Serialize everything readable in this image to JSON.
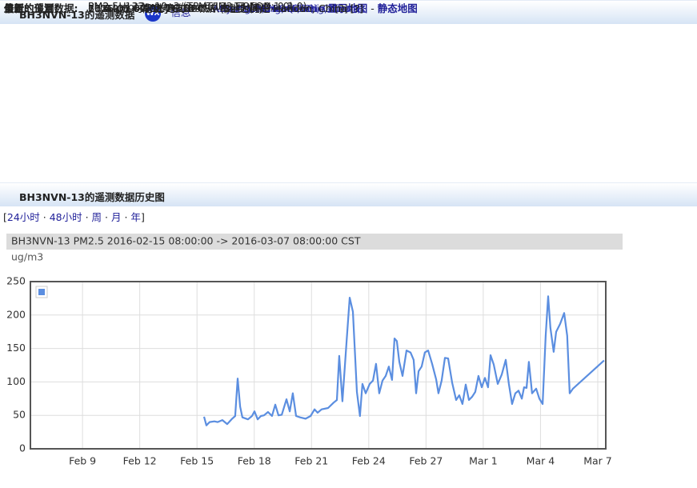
{
  "header": {
    "title": "BH3NVN-13的遥测数据",
    "badge": "WX",
    "sep": " - ",
    "info_link": "信息"
  },
  "info": [
    {
      "label": "位置:",
      "lines": [
        [
          {
            "text": "36°40.09' N 114°33.84' E - 定位 "
          },
          {
            "text": "OM76GQ70QI",
            "link": true
          },
          {
            "text": " - "
          },
          {
            "text": "显示地图",
            "link": true,
            "bold": true
          },
          {
            "text": " - "
          },
          {
            "text": "静态地图",
            "link": true,
            "bold": true
          }
        ],
        [
          {
            "text": "11.4 km 向东北 方向 49° 从 "
          },
          {
            "text": "Handan, Hebei, China",
            "link": true
          },
          {
            "text": " [?]"
          }
        ],
        [
          {
            "text": "30.5 km 向南 方向 170° 从 "
          },
          {
            "text": "Shahecheng, Hebei, China",
            "link": true
          }
        ],
        [
          {
            "text": "66.6 km 向北 方向 18° 从 "
          },
          {
            "text": "Anyang, Henan Sheng, China",
            "link": true
          }
        ]
      ]
    },
    {
      "label": "最新的位置:",
      "lines": [
        [
          {
            "text": "2016-03-07 08:26:18 CST (2s 之前)"
          }
        ],
        [
          {
            "text": "2016-03-07 08:26:18 CST 本地时间是 Handan, China [?]"
          }
        ]
      ]
    },
    {
      "label": "最新的遥测数据:",
      "lines": [
        [
          {
            "text": "2016-03-07 08:26:18 CST (8s 之前)"
          }
        ],
        [
          {
            "text": "2016-03-07 08:26:18 CST 本地时间是 Handan, China [?]"
          }
        ]
      ]
    },
    {
      "label": "值:",
      "lines": [
        [
          {
            "text": "PM2.5: 132 ug/m3 (TLM: 132 EQN: 0,1,0)"
          }
        ],
        [
          {
            "text": "PM2.5H: 13 x10ug/m3 (TLM: 13 EQN: 0,1,0)"
          }
        ]
      ]
    }
  ],
  "history": {
    "title": "BH3NVN-13的遥测数据历史图"
  },
  "nav": {
    "open": "[",
    "sep": " · ",
    "close": "]",
    "links": [
      "24小时",
      "48小时",
      "周",
      "月",
      "年"
    ]
  },
  "chart_data": {
    "type": "line",
    "title": "BH3NVN-13 PM2.5 2016-02-15 08:00:00 -> 2016-03-07 08:00:00 CST",
    "y_label": "ug/m3",
    "x": [
      15.37,
      15.49,
      15.66,
      15.91,
      16.08,
      16.33,
      16.58,
      16.84,
      17.0,
      17.13,
      17.26,
      17.38,
      17.67,
      17.88,
      18.01,
      18.18,
      18.35,
      18.51,
      18.72,
      18.93,
      19.1,
      19.27,
      19.44,
      19.69,
      19.86,
      20.02,
      20.19,
      20.4,
      20.69,
      20.95,
      21.16,
      21.32,
      21.53,
      21.87,
      22.16,
      22.33,
      22.45,
      22.62,
      22.83,
      23.0,
      23.17,
      23.38,
      23.54,
      23.67,
      23.84,
      24.05,
      24.22,
      24.38,
      24.55,
      24.72,
      24.89,
      25.05,
      25.22,
      25.35,
      25.47,
      25.6,
      25.77,
      25.98,
      26.19,
      26.35,
      26.48,
      26.61,
      26.77,
      26.94,
      27.11,
      27.32,
      27.53,
      27.65,
      27.82,
      27.99,
      28.16,
      28.37,
      28.58,
      28.74,
      28.91,
      29.08,
      29.25,
      29.42,
      29.58,
      29.75,
      29.92,
      30.09,
      30.25,
      30.38,
      30.55,
      30.76,
      30.97,
      31.18,
      31.34,
      31.51,
      31.68,
      31.85,
      32.02,
      32.14,
      32.27,
      32.39,
      32.56,
      32.77,
      32.94,
      33.11,
      33.27,
      33.4,
      33.52,
      33.69,
      33.82,
      34.03,
      34.24,
      34.4,
      34.53,
      34.7,
      36.33
    ],
    "series": [
      {
        "color": "#5b8ee0",
        "values": [
          48,
          35,
          40,
          41,
          40,
          43,
          37,
          45,
          49,
          105,
          63,
          47,
          44,
          49,
          56,
          44,
          49,
          50,
          55,
          49,
          66,
          50,
          51,
          74,
          56,
          83,
          49,
          47,
          45,
          49,
          59,
          54,
          59,
          61,
          69,
          73,
          139,
          71,
          157,
          226,
          205,
          85,
          49,
          97,
          83,
          97,
          102,
          127,
          83,
          102,
          109,
          123,
          103,
          165,
          161,
          130,
          109,
          147,
          144,
          133,
          83,
          116,
          123,
          144,
          147,
          127,
          104,
          83,
          102,
          136,
          135,
          99,
          73,
          80,
          67,
          96,
          73,
          78,
          85,
          109,
          92,
          106,
          92,
          140,
          126,
          97,
          111,
          133,
          97,
          67,
          83,
          87,
          75,
          92,
          91,
          130,
          83,
          90,
          75,
          67,
          169,
          228,
          181,
          145,
          175,
          187,
          203,
          169,
          83,
          90,
          132
        ]
      }
    ],
    "xlim": [
      6.27,
      36.42
    ],
    "xticks": [
      {
        "value": 9,
        "label": "Feb 9"
      },
      {
        "value": 12,
        "label": "Feb 12"
      },
      {
        "value": 15,
        "label": "Feb 15"
      },
      {
        "value": 18,
        "label": "Feb 18"
      },
      {
        "value": 21,
        "label": "Feb 21"
      },
      {
        "value": 24,
        "label": "Feb 24"
      },
      {
        "value": 27,
        "label": "Feb 27"
      },
      {
        "value": 30,
        "label": "Mar 1"
      },
      {
        "value": 33,
        "label": "Mar 4"
      },
      {
        "value": 36,
        "label": "Mar 7"
      }
    ],
    "ylim": [
      0,
      250
    ],
    "yticks": [
      0,
      50,
      100,
      150,
      200,
      250
    ],
    "grid": true,
    "legend": "upper left"
  }
}
